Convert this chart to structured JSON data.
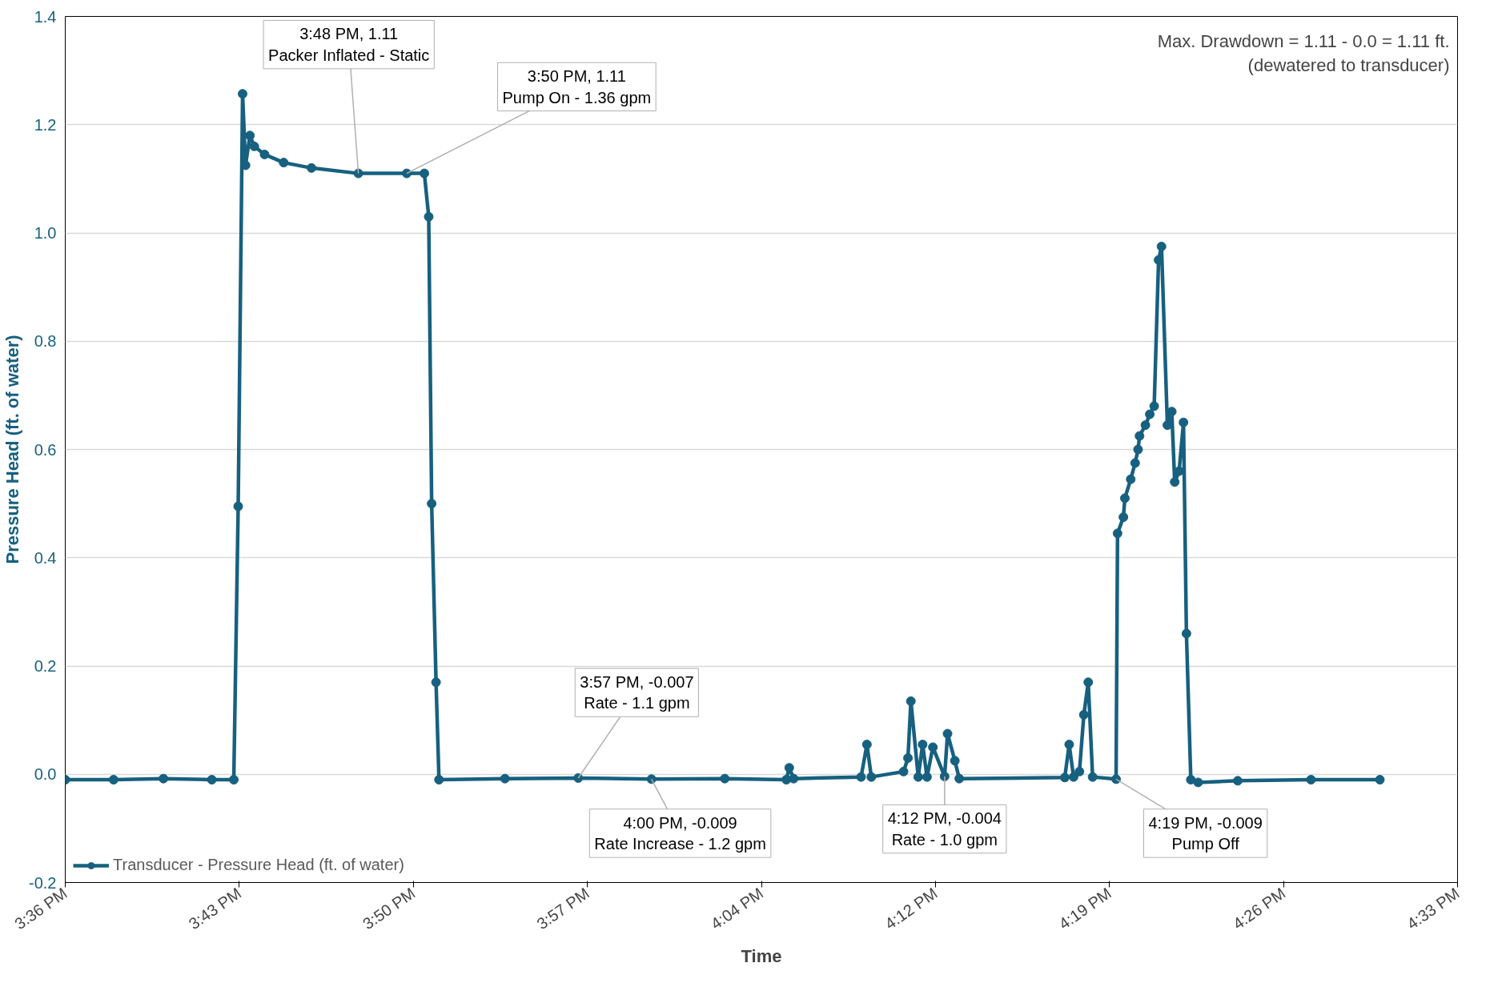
{
  "chart_data": {
    "type": "line",
    "xlabel": "Time",
    "ylabel": "Pressure Head (ft. of water)",
    "x": [
      15.6,
      15.633,
      15.667,
      15.7,
      15.715,
      15.718,
      15.721,
      15.723,
      15.726,
      15.729,
      15.736,
      15.749,
      15.768,
      15.8,
      15.833,
      15.845,
      15.848,
      15.85,
      15.853,
      15.855,
      15.9,
      15.95,
      16.0,
      16.05,
      16.092,
      16.094,
      16.097,
      16.143,
      16.147,
      16.15,
      16.172,
      16.175,
      16.177,
      16.182,
      16.185,
      16.188,
      16.192,
      16.2,
      16.202,
      16.207,
      16.21,
      16.282,
      16.285,
      16.288,
      16.292,
      16.295,
      16.298,
      16.301,
      16.317,
      16.318,
      16.322,
      16.323,
      16.327,
      16.33,
      16.332,
      16.333,
      16.337,
      16.34,
      16.343,
      16.346,
      16.348,
      16.352,
      16.355,
      16.357,
      16.36,
      16.363,
      16.365,
      16.368,
      16.373,
      16.4,
      16.45,
      16.497
    ],
    "series": [
      {
        "name": "Transducer - Pressure Head (ft. of water)",
        "color": "#17607f",
        "values": [
          -0.01,
          -0.01,
          -0.008,
          -0.01,
          -0.01,
          0.495,
          1.257,
          1.125,
          1.18,
          1.16,
          1.145,
          1.13,
          1.12,
          1.11,
          1.11,
          1.11,
          1.03,
          0.5,
          0.17,
          -0.01,
          -0.008,
          -0.007,
          -0.009,
          -0.008,
          -0.01,
          0.012,
          -0.008,
          -0.005,
          0.055,
          -0.005,
          0.005,
          0.03,
          0.135,
          -0.005,
          0.055,
          -0.005,
          0.05,
          -0.004,
          0.075,
          0.025,
          -0.008,
          -0.006,
          0.055,
          -0.005,
          0.005,
          0.11,
          0.17,
          -0.005,
          -0.009,
          0.445,
          0.475,
          0.51,
          0.545,
          0.575,
          0.6,
          0.625,
          0.645,
          0.665,
          0.68,
          0.95,
          0.975,
          0.645,
          0.67,
          0.54,
          0.56,
          0.65,
          0.26,
          -0.01,
          -0.015,
          -0.012,
          -0.01,
          -0.01
        ]
      }
    ],
    "xlim": [
      15.6,
      16.55
    ],
    "xticks": [
      {
        "value": 15.6,
        "label": "3:36 PM"
      },
      {
        "value": 15.71875,
        "label": "3:43 PM"
      },
      {
        "value": 15.8375,
        "label": "3:50 PM"
      },
      {
        "value": 15.95625,
        "label": "3:57 PM"
      },
      {
        "value": 16.075,
        "label": "4:04 PM"
      },
      {
        "value": 16.19375,
        "label": "4:12 PM"
      },
      {
        "value": 16.3125,
        "label": "4:19 PM"
      },
      {
        "value": 16.43125,
        "label": "4:26 PM"
      },
      {
        "value": 16.55,
        "label": "4:33 PM"
      }
    ],
    "ylim": [
      -0.2,
      1.4
    ],
    "yticks": [
      -0.2,
      {
        "value": 0,
        "label": "0.0"
      },
      0.2,
      0.4,
      0.6,
      0.8,
      {
        "value": 1,
        "label": "1.0"
      },
      1.2,
      1.4
    ],
    "grid": "y",
    "legend": "bottom left",
    "marker": "circle",
    "line_style": "solid",
    "annotations": [
      {
        "text": "3:48 PM, 1.11\nPacker Inflated - Static",
        "x": 15.8,
        "y": 1.11
      },
      {
        "text": "3:50 PM, 1.11\nPump On - 1.36 gpm",
        "x": 15.833,
        "y": 1.11
      },
      {
        "text": "3:57 PM, -0.007\nRate - 1.1 gpm",
        "x": 15.95,
        "y": -0.007
      },
      {
        "text": "4:00 PM, -0.009\nRate Increase - 1.2 gpm",
        "x": 16.0,
        "y": -0.009
      },
      {
        "text": "4:12 PM, -0.004\nRate - 1.0 gpm",
        "x": 16.2,
        "y": -0.004
      },
      {
        "text": "4:19 PM, -0.009\nPump Off",
        "x": 16.317,
        "y": -0.009
      },
      "Max. Drawdown = 1.11 - 0.0 = 1.11 ft.\n(dewatered to transducer)"
    ]
  }
}
